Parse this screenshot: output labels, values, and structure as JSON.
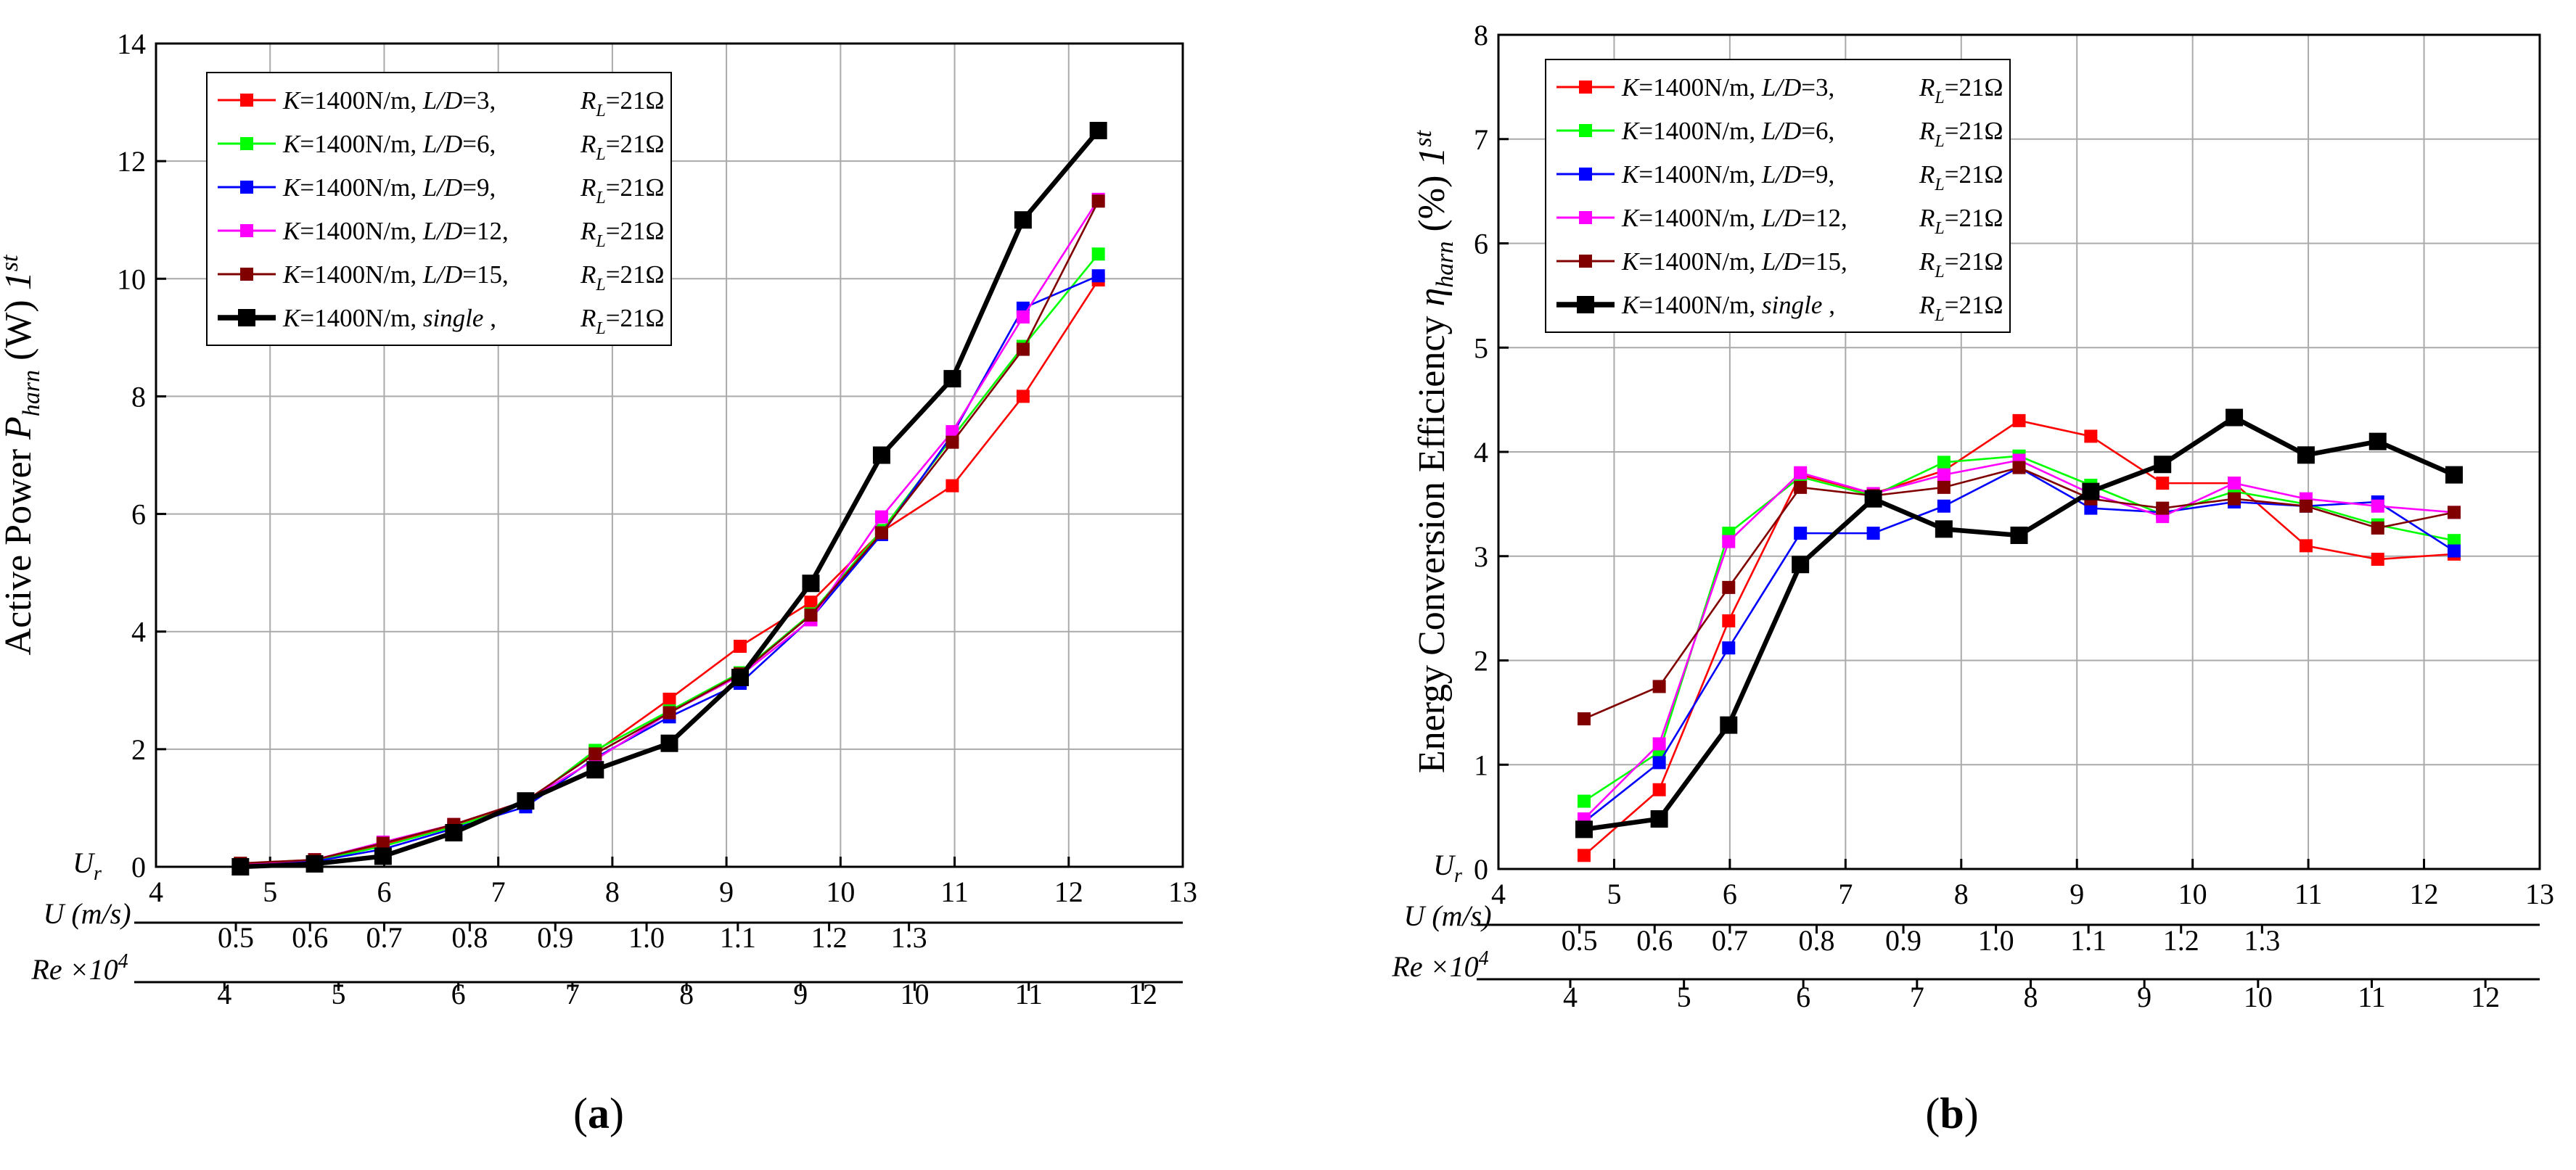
{
  "chart_data": [
    {
      "type": "line",
      "panel_label": "a",
      "ylabel_prefix": "Active Power ",
      "ylabel_sym": "P",
      "ylabel_sub": "harn",
      "ylabel_unit": " (W) ",
      "ylabel_order": "1",
      "ylabel_sup": "st",
      "xlim": [
        4,
        13
      ],
      "ylim": [
        0,
        14
      ],
      "xticks": [
        4,
        5,
        6,
        7,
        8,
        9,
        10,
        11,
        12,
        13
      ],
      "yticks": [
        0,
        2,
        4,
        6,
        8,
        10,
        12,
        14
      ],
      "grid": true,
      "legend_position": "top-left",
      "secondary_axes": [
        {
          "label": "U (m/s)",
          "ticks": [
            "0.5",
            "0.6",
            "0.7",
            "0.8",
            "0.9",
            "1.0",
            "1.1",
            "1.2",
            "1.3"
          ],
          "ur_values": [
            4.7,
            5.35,
            6.0,
            6.75,
            7.5,
            8.3,
            9.1,
            9.9,
            10.6
          ]
        },
        {
          "label": "Re ×10",
          "label_sup": "4",
          "ticks": [
            "4",
            "5",
            "6",
            "7",
            "8",
            "9",
            "10",
            "11",
            "12"
          ],
          "ur_values": [
            4.0,
            5.0,
            6.05,
            7.05,
            8.05,
            9.05,
            10.05,
            11.05,
            12.05
          ],
          "range": [
            3.4,
            12.4
          ]
        }
      ],
      "x": [
        4.74,
        5.39,
        5.99,
        6.61,
        7.24,
        7.85,
        8.5,
        9.12,
        9.74,
        10.36,
        10.98,
        11.6,
        12.26
      ],
      "series": [
        {
          "name_K": "K",
          "name_mid": "=1400N/m, ",
          "name_LD": "L/D",
          "name_val": "=3,",
          "name_R": "R",
          "name_Rsub": "L",
          "name_end": "=21Ω",
          "color": "#ff0000",
          "width": 2,
          "marker": 18,
          "values": [
            0.05,
            0.12,
            0.38,
            0.7,
            1.1,
            1.95,
            2.85,
            3.75,
            4.5,
            5.7,
            6.48,
            8.0,
            9.98
          ]
        },
        {
          "name_K": "K",
          "name_mid": "=1400N/m, ",
          "name_LD": "L/D",
          "name_val": "=6,",
          "name_R": "R",
          "name_Rsub": "L",
          "name_end": "=21Ω",
          "color": "#00ff00",
          "width": 2,
          "marker": 18,
          "values": [
            0.04,
            0.1,
            0.35,
            0.68,
            1.08,
            1.98,
            2.65,
            3.3,
            4.3,
            5.72,
            7.3,
            8.85,
            10.42
          ]
        },
        {
          "name_K": "K",
          "name_mid": "=1400N/m, ",
          "name_LD": "L/D",
          "name_val": "=9,",
          "name_R": "R",
          "name_Rsub": "L",
          "name_end": "=21Ω",
          "color": "#0000ff",
          "width": 2,
          "marker": 18,
          "values": [
            0.03,
            0.09,
            0.3,
            0.65,
            1.02,
            1.85,
            2.55,
            3.12,
            4.22,
            5.65,
            7.35,
            9.5,
            10.05
          ]
        },
        {
          "name_K": "K",
          "name_mid": "=1400N/m, ",
          "name_LD": "L/D",
          "name_val": "=12,",
          "name_R": "R",
          "name_Rsub": "L",
          "name_end": "=21Ω",
          "color": "#ff00ff",
          "width": 2,
          "marker": 18,
          "values": [
            0.04,
            0.12,
            0.42,
            0.72,
            1.12,
            1.82,
            2.62,
            3.25,
            4.2,
            5.95,
            7.4,
            9.35,
            11.35
          ]
        },
        {
          "name_K": "K",
          "name_mid": "=1400N/m, ",
          "name_LD": "L/D",
          "name_val": "=15,",
          "name_R": "R",
          "name_Rsub": "L",
          "name_end": "=21Ω",
          "color": "#800000",
          "width": 2,
          "marker": 18,
          "values": [
            0.06,
            0.12,
            0.4,
            0.72,
            1.12,
            1.92,
            2.62,
            3.28,
            4.28,
            5.68,
            7.22,
            8.8,
            11.32
          ]
        },
        {
          "name_K": "K",
          "name_mid": "=1400N/m, ",
          "name_LD": "single",
          "name_val": " ,",
          "name_R": "R",
          "name_Rsub": "L",
          "name_end": "=21Ω",
          "color": "#000000",
          "width": 5,
          "marker": 24,
          "values": [
            0.0,
            0.05,
            0.18,
            0.58,
            1.12,
            1.65,
            2.1,
            3.22,
            4.82,
            7.0,
            8.3,
            11.0,
            12.52
          ]
        }
      ]
    },
    {
      "type": "line",
      "panel_label": "b",
      "ylabel_prefix": "Energy Conversion Efficiency ",
      "ylabel_sym": "η",
      "ylabel_sub": "harn",
      "ylabel_unit": " (%) ",
      "ylabel_order": "1",
      "ylabel_sup": "st",
      "xlim": [
        4,
        13
      ],
      "ylim": [
        0,
        8
      ],
      "xticks": [
        4,
        5,
        6,
        7,
        8,
        9,
        10,
        11,
        12,
        13
      ],
      "yticks": [
        0,
        1,
        2,
        3,
        4,
        5,
        6,
        7,
        8
      ],
      "grid": true,
      "legend_position": "top-left",
      "secondary_axes": [
        {
          "label": "U (m/s)",
          "ticks": [
            "0.5",
            "0.6",
            "0.7",
            "0.8",
            "0.9",
            "1.0",
            "1.1",
            "1.2",
            "1.3"
          ],
          "ur_values": [
            4.7,
            5.35,
            6.0,
            6.75,
            7.5,
            8.3,
            9.1,
            9.9,
            10.6
          ]
        },
        {
          "label": "Re ×10",
          "label_sup": "4",
          "ticks": [
            "4",
            "5",
            "6",
            "7",
            "8",
            "9",
            "10",
            "11",
            "12"
          ],
          "ur_values": [
            4.0,
            5.0,
            6.05,
            7.05,
            8.05,
            9.05,
            10.05,
            11.05,
            12.05
          ],
          "range": [
            3.4,
            12.4
          ]
        }
      ],
      "x": [
        4.74,
        5.39,
        5.99,
        6.61,
        7.24,
        7.85,
        8.5,
        9.12,
        9.74,
        10.36,
        10.98,
        11.6,
        12.26
      ],
      "series": [
        {
          "name_K": "K",
          "name_mid": "=1400N/m, ",
          "name_LD": "L/D",
          "name_val": "=3,",
          "name_R": "R",
          "name_Rsub": "L",
          "name_end": "=21Ω",
          "color": "#ff0000",
          "width": 2,
          "marker": 18,
          "values": [
            0.13,
            0.76,
            2.38,
            3.78,
            3.6,
            3.82,
            4.3,
            4.15,
            3.7,
            3.7,
            3.1,
            2.97,
            3.02
          ]
        },
        {
          "name_K": "K",
          "name_mid": "=1400N/m, ",
          "name_LD": "L/D",
          "name_val": "=6,",
          "name_R": "R",
          "name_Rsub": "L",
          "name_end": "=21Ω",
          "color": "#00ff00",
          "width": 2,
          "marker": 18,
          "values": [
            0.65,
            1.12,
            3.22,
            3.76,
            3.58,
            3.9,
            3.96,
            3.68,
            3.4,
            3.62,
            3.5,
            3.3,
            3.15
          ]
        },
        {
          "name_K": "K",
          "name_mid": "=1400N/m, ",
          "name_LD": "L/D",
          "name_val": "=9,",
          "name_R": "R",
          "name_Rsub": "L",
          "name_end": "=21Ω",
          "color": "#0000ff",
          "width": 2,
          "marker": 18,
          "values": [
            0.45,
            1.02,
            2.12,
            3.22,
            3.22,
            3.48,
            3.85,
            3.46,
            3.42,
            3.52,
            3.48,
            3.52,
            3.05
          ]
        },
        {
          "name_K": "K",
          "name_mid": "=1400N/m, ",
          "name_LD": "L/D",
          "name_val": "=12,",
          "name_R": "R",
          "name_Rsub": "L",
          "name_end": "=21Ω",
          "color": "#ff00ff",
          "width": 2,
          "marker": 18,
          "values": [
            0.48,
            1.2,
            3.14,
            3.8,
            3.6,
            3.78,
            3.92,
            3.6,
            3.38,
            3.7,
            3.55,
            3.48,
            3.42
          ]
        },
        {
          "name_K": "K",
          "name_mid": "=1400N/m, ",
          "name_LD": "L/D",
          "name_val": "=15,",
          "name_R": "R",
          "name_Rsub": "L",
          "name_end": "=21Ω",
          "color": "#800000",
          "width": 2,
          "marker": 18,
          "values": [
            1.44,
            1.75,
            2.7,
            3.66,
            3.58,
            3.66,
            3.85,
            3.55,
            3.46,
            3.55,
            3.48,
            3.27,
            3.42
          ]
        },
        {
          "name_K": "K",
          "name_mid": "=1400N/m, ",
          "name_LD": "single",
          "name_val": " ,",
          "name_R": "R",
          "name_Rsub": "L",
          "name_end": "=21Ω",
          "color": "#000000",
          "width": 5,
          "marker": 24,
          "values": [
            0.38,
            0.48,
            1.38,
            2.92,
            3.55,
            3.26,
            3.2,
            3.62,
            3.88,
            4.33,
            3.97,
            4.1,
            3.78
          ]
        }
      ]
    }
  ]
}
